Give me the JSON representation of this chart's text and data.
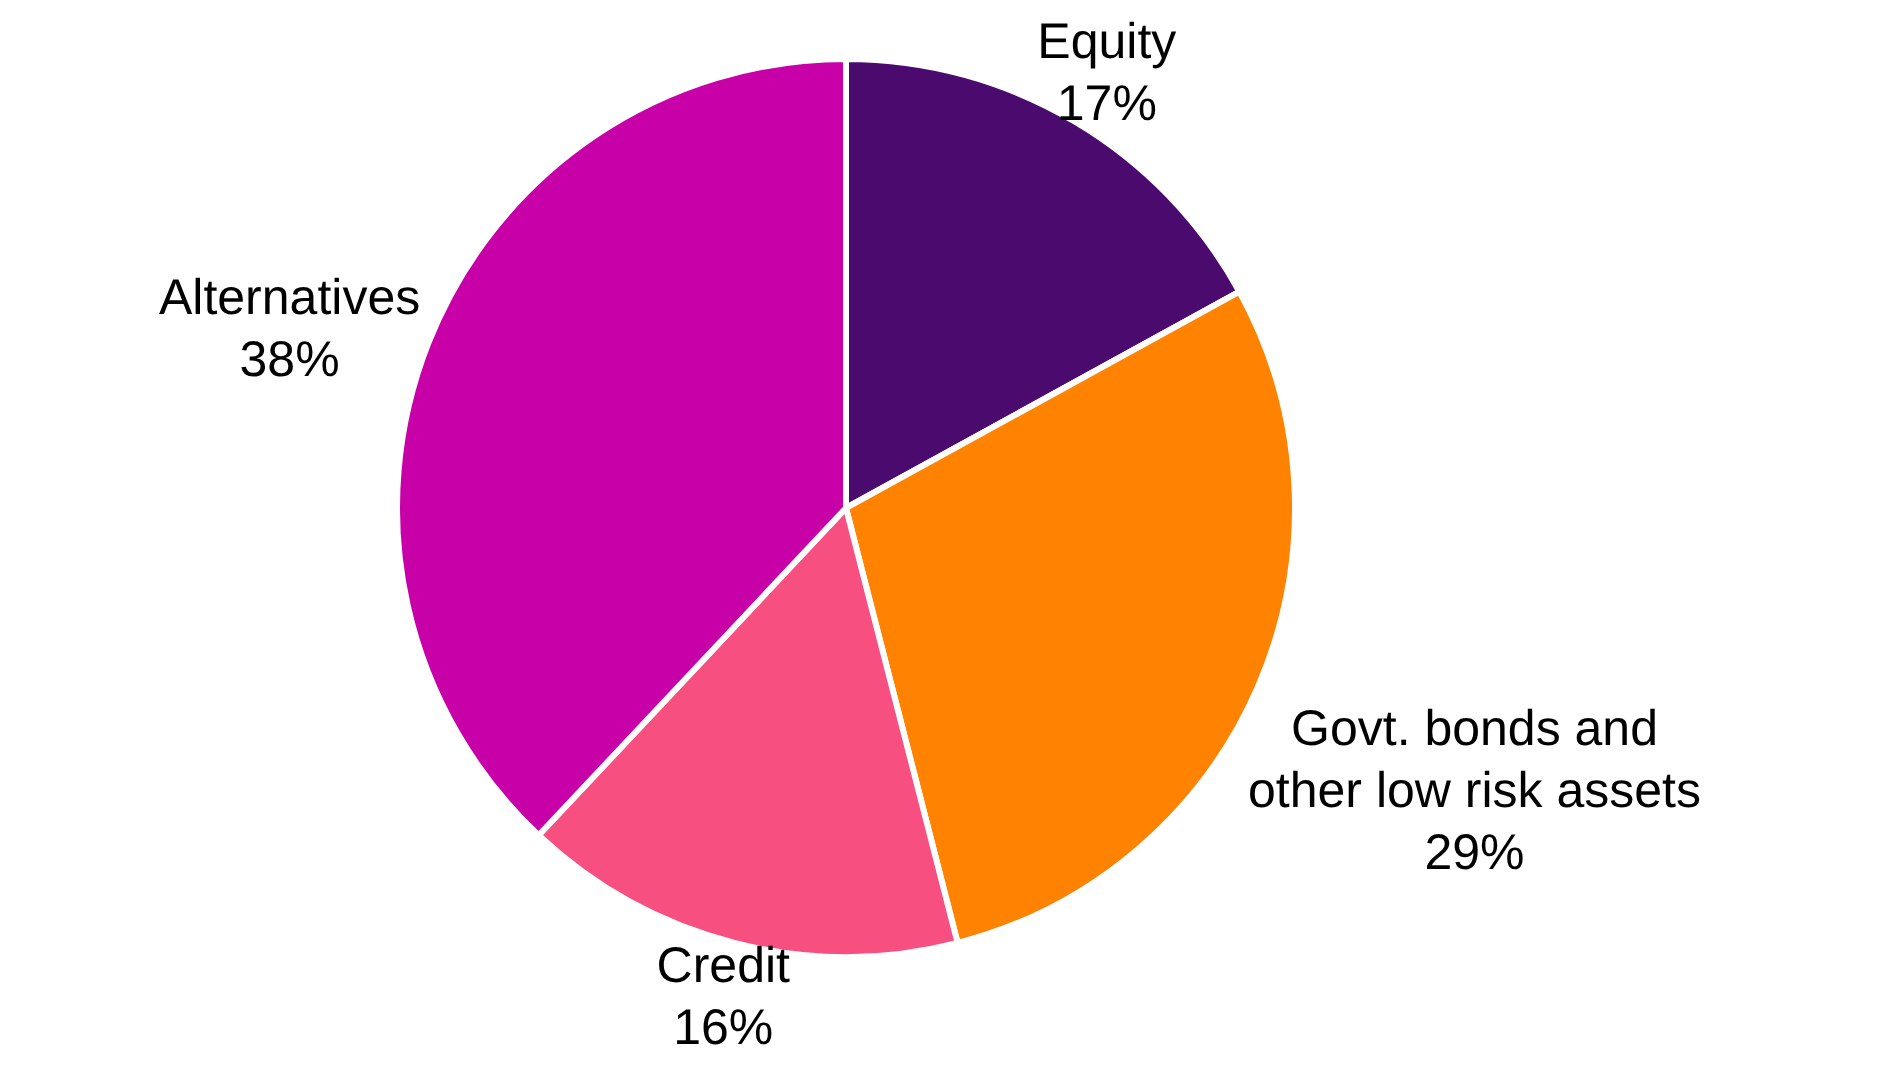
{
  "chart_data": {
    "type": "pie",
    "categories": [
      "Equity",
      "Govt. bonds and other low risk assets",
      "Credit",
      "Alternatives"
    ],
    "values": [
      17,
      29,
      16,
      38
    ],
    "colors": [
      "#4b0a6e",
      "#ff8200",
      "#f75080",
      "#c800a8"
    ],
    "value_labels": [
      "17%",
      "29%",
      "16%",
      "38%"
    ]
  }
}
